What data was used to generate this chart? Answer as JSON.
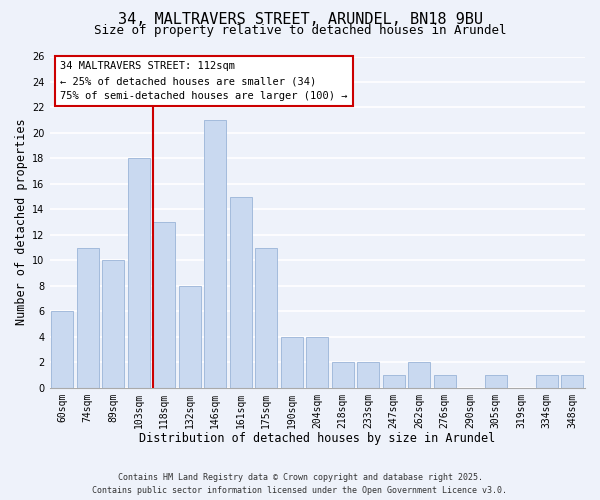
{
  "title_line1": "34, MALTRAVERS STREET, ARUNDEL, BN18 9BU",
  "title_line2": "Size of property relative to detached houses in Arundel",
  "xlabel": "Distribution of detached houses by size in Arundel",
  "ylabel": "Number of detached properties",
  "bar_labels": [
    "60sqm",
    "74sqm",
    "89sqm",
    "103sqm",
    "118sqm",
    "132sqm",
    "146sqm",
    "161sqm",
    "175sqm",
    "190sqm",
    "204sqm",
    "218sqm",
    "233sqm",
    "247sqm",
    "262sqm",
    "276sqm",
    "290sqm",
    "305sqm",
    "319sqm",
    "334sqm",
    "348sqm"
  ],
  "bar_values": [
    6,
    11,
    10,
    18,
    13,
    8,
    21,
    15,
    11,
    4,
    4,
    2,
    2,
    1,
    2,
    1,
    0,
    1,
    0,
    1,
    1
  ],
  "bar_color": "#c9d9f0",
  "bar_edgecolor": "#9ab4d8",
  "ylim": [
    0,
    26
  ],
  "yticks": [
    0,
    2,
    4,
    6,
    8,
    10,
    12,
    14,
    16,
    18,
    20,
    22,
    24,
    26
  ],
  "annotation_title": "34 MALTRAVERS STREET: 112sqm",
  "annotation_line2": "← 25% of detached houses are smaller (34)",
  "annotation_line3": "75% of semi-detached houses are larger (100) →",
  "box_facecolor": "#ffffff",
  "box_edgecolor": "#cc0000",
  "red_line_color": "#cc0000",
  "footer1": "Contains HM Land Registry data © Crown copyright and database right 2025.",
  "footer2": "Contains public sector information licensed under the Open Government Licence v3.0.",
  "background_color": "#eef2fa",
  "grid_color": "#ffffff",
  "title_fontsize": 11,
  "subtitle_fontsize": 9,
  "axis_label_fontsize": 8.5,
  "tick_fontsize": 7,
  "annotation_fontsize": 7.5,
  "footer_fontsize": 6
}
